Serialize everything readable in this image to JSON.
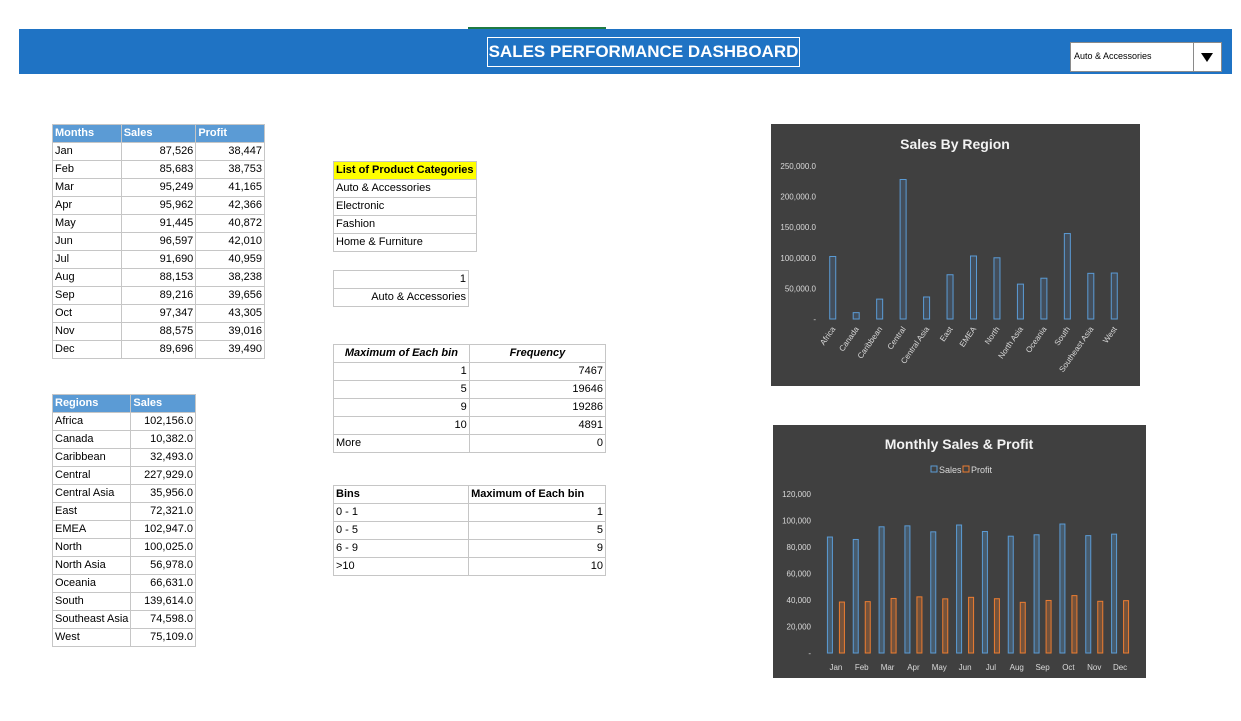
{
  "header": {
    "title": "SALES PERFORMANCE DASHBOARD",
    "dropdown_value": "Auto & Accessories"
  },
  "months_table": {
    "headers": [
      "Months",
      "Sales",
      "Profit"
    ],
    "rows": [
      [
        "Jan",
        "87,526",
        "38,447"
      ],
      [
        "Feb",
        "85,683",
        "38,753"
      ],
      [
        "Mar",
        "95,249",
        "41,165"
      ],
      [
        "Apr",
        "95,962",
        "42,366"
      ],
      [
        "May",
        "91,445",
        "40,872"
      ],
      [
        "Jun",
        "96,597",
        "42,010"
      ],
      [
        "Jul",
        "91,690",
        "40,959"
      ],
      [
        "Aug",
        "88,153",
        "38,238"
      ],
      [
        "Sep",
        "89,216",
        "39,656"
      ],
      [
        "Oct",
        "97,347",
        "43,305"
      ],
      [
        "Nov",
        "88,575",
        "39,016"
      ],
      [
        "Dec",
        "89,696",
        "39,490"
      ]
    ]
  },
  "regions_table": {
    "headers": [
      "Regions",
      "Sales"
    ],
    "rows": [
      [
        "Africa",
        "102,156.0"
      ],
      [
        "Canada",
        "10,382.0"
      ],
      [
        "Caribbean",
        "32,493.0"
      ],
      [
        "Central",
        "227,929.0"
      ],
      [
        "Central Asia",
        "35,956.0"
      ],
      [
        "East",
        "72,321.0"
      ],
      [
        "EMEA",
        "102,947.0"
      ],
      [
        "North",
        "100,025.0"
      ],
      [
        "North Asia",
        "56,978.0"
      ],
      [
        "Oceania",
        "66,631.0"
      ],
      [
        "South",
        "139,614.0"
      ],
      [
        "Southeast Asia",
        "74,598.0"
      ],
      [
        "West",
        "75,109.0"
      ]
    ]
  },
  "categories_list": {
    "header": "List of Product Categories",
    "items": [
      "Auto & Accessories",
      "Electronic",
      "Fashion",
      "Home & Furniture"
    ]
  },
  "selection": {
    "index": "1",
    "name": "Auto & Accessories"
  },
  "frequency_table": {
    "headers": [
      "Maximum of Each bin",
      "Frequency"
    ],
    "rows": [
      [
        "1",
        "7467"
      ],
      [
        "5",
        "19646"
      ],
      [
        "9",
        "19286"
      ],
      [
        "10",
        "4891"
      ],
      [
        "More",
        "0"
      ]
    ]
  },
  "bins_table": {
    "headers": [
      "Bins",
      "Maximum of Each bin"
    ],
    "rows": [
      [
        "0 - 1",
        "1"
      ],
      [
        "0 - 5",
        "5"
      ],
      [
        "6 - 9",
        "9"
      ],
      [
        ">10",
        "10"
      ]
    ]
  },
  "chart_data": [
    {
      "type": "bar",
      "title": "Sales By Region",
      "categories": [
        "Africa",
        "Canada",
        "Caribbean",
        "Central",
        "Central Asia",
        "East",
        "EMEA",
        "North",
        "North Asia",
        "Oceania",
        "South",
        "Southeast Asia",
        "West"
      ],
      "values": [
        102156,
        10382,
        32493,
        227929,
        35956,
        72321,
        102947,
        100025,
        56978,
        66631,
        139614,
        74598,
        75109
      ],
      "ylim": [
        0,
        250000
      ],
      "yticks": [
        "250,000.0",
        "200,000.0",
        "150,000.0",
        "100,000.0",
        "50,000.0",
        "-"
      ],
      "bar_color": "#5b9bd5",
      "background": "#404040"
    },
    {
      "type": "bar",
      "title": "Monthly Sales & Profit",
      "categories": [
        "Jan",
        "Feb",
        "Mar",
        "Apr",
        "May",
        "Jun",
        "Jul",
        "Aug",
        "Sep",
        "Oct",
        "Nov",
        "Dec"
      ],
      "series": [
        {
          "name": "Sales",
          "color": "#5b9bd5",
          "values": [
            87526,
            85683,
            95249,
            95962,
            91445,
            96597,
            91690,
            88153,
            89216,
            97347,
            88575,
            89696
          ]
        },
        {
          "name": "Profit",
          "color": "#ed7d31",
          "values": [
            38447,
            38753,
            41165,
            42366,
            40872,
            42010,
            40959,
            38238,
            39656,
            43305,
            39016,
            39490
          ]
        }
      ],
      "ylim": [
        0,
        120000
      ],
      "yticks": [
        "120,000",
        "100,000",
        "80,000",
        "60,000",
        "40,000",
        "20,000",
        "-"
      ],
      "legend": "top",
      "background": "#404040"
    }
  ]
}
